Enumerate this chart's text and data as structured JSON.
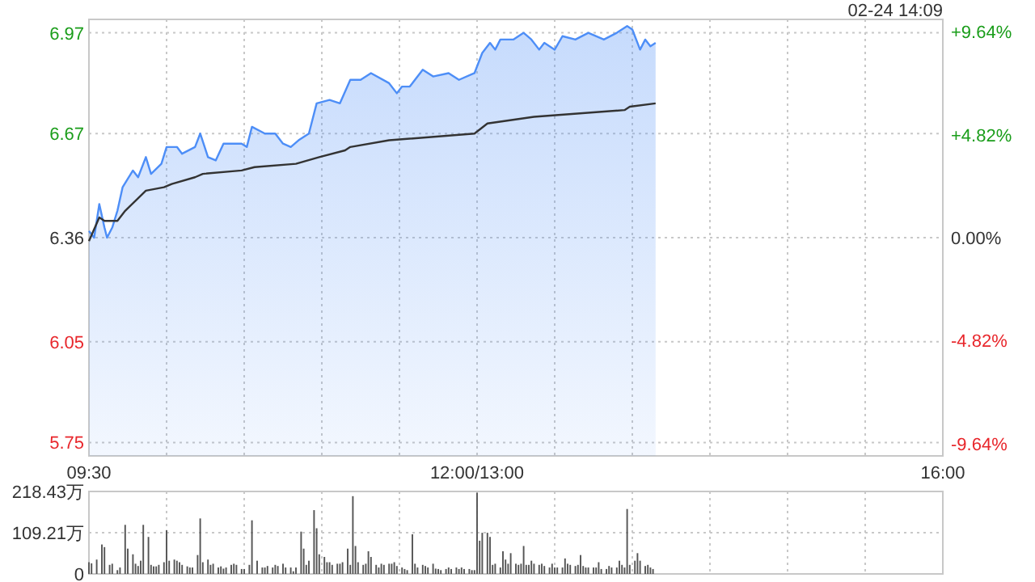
{
  "chart_data": [
    {
      "type": "line",
      "annotations": [
        "02-24 14:09"
      ],
      "categories": [
        "09:30",
        null,
        null,
        null,
        null,
        null,
        null,
        null,
        null,
        null,
        null,
        null,
        null,
        null,
        null,
        null,
        null,
        null,
        null,
        null,
        null,
        null,
        null,
        null,
        null,
        null,
        null,
        null,
        null,
        null,
        null,
        null,
        null,
        null,
        null,
        null,
        null,
        null,
        null,
        null,
        null,
        null,
        null,
        null,
        null,
        null,
        null,
        null,
        null,
        null,
        null,
        null,
        null,
        null,
        null,
        null,
        null,
        null,
        null,
        null,
        null,
        null,
        null,
        null,
        null,
        null,
        null,
        null,
        null,
        null,
        null,
        null,
        null,
        null,
        null,
        null,
        null,
        null,
        null,
        null,
        null,
        null,
        null,
        null,
        null,
        null,
        null,
        null,
        null,
        null,
        null,
        null,
        null,
        null,
        null,
        null,
        null,
        null,
        null,
        null,
        null,
        null,
        null,
        null,
        null,
        null,
        null,
        null,
        null,
        null,
        null,
        null,
        null,
        null,
        null,
        null,
        null,
        null,
        null,
        null,
        null,
        null,
        null,
        null,
        null,
        null,
        null,
        null,
        null,
        null,
        null,
        null,
        null,
        null,
        null,
        null,
        null,
        null,
        null,
        null,
        null,
        null,
        null,
        null,
        null,
        null,
        null,
        null,
        null,
        null,
        "12:00/13:00",
        null,
        null,
        null,
        null,
        null,
        null,
        null,
        null,
        null,
        null,
        null,
        null,
        null,
        null,
        null,
        null,
        null,
        null,
        null,
        null,
        null,
        null,
        null,
        null,
        null,
        null,
        null,
        null,
        null,
        null,
        null,
        null,
        null,
        null,
        null,
        null,
        null,
        null,
        null,
        null,
        null,
        null,
        null,
        null,
        null,
        null,
        null,
        null,
        null,
        null,
        null,
        null,
        null,
        null,
        null,
        null,
        null,
        null,
        null,
        null,
        null,
        null,
        null,
        null,
        null,
        null,
        null,
        null,
        null,
        null,
        null,
        null,
        null,
        null,
        null,
        null,
        null,
        null,
        null,
        null,
        null,
        null,
        null,
        null,
        null,
        null,
        null,
        null,
        null,
        null,
        null,
        null,
        null,
        null,
        null,
        null,
        null,
        null,
        null,
        null,
        null,
        null,
        null,
        null,
        null,
        null,
        null,
        null,
        null,
        null,
        null,
        null,
        null,
        null,
        null,
        null,
        null,
        null,
        null,
        null,
        null,
        null,
        null,
        null,
        null,
        null,
        null,
        null,
        null,
        null,
        null,
        null,
        null,
        null,
        null,
        null,
        null,
        null,
        null,
        null,
        null,
        null,
        null,
        null,
        null,
        null,
        null,
        null,
        null,
        null,
        null,
        null,
        null,
        null,
        null,
        null,
        null,
        null,
        null,
        null,
        null,
        null,
        null,
        null,
        null,
        null,
        null,
        null,
        null,
        null,
        null,
        null,
        null,
        null,
        null,
        null,
        null,
        null,
        null,
        "16:00"
      ],
      "ylim": [
        5.71,
        7.01
      ],
      "yticks": [
        5.75,
        6.05,
        6.36,
        6.67,
        6.97
      ],
      "y2lim": [
        -10.22,
        10.22
      ],
      "y2ticks": [
        {
          "value": -9.64,
          "label": "-9.64%"
        },
        {
          "value": -4.82,
          "label": "-4.82%"
        },
        {
          "value": 0,
          "label": "0.00%"
        },
        {
          "value": 4.82,
          "label": "+4.82%"
        },
        {
          "value": 9.64,
          "label": "+9.64%"
        }
      ],
      "grid": true,
      "series": [
        {
          "type": "area",
          "color": "#4d8ef7",
          "values": [
            6.38,
            null,
            6.36,
            null,
            6.46,
            null,
            6.39,
            6.36,
            null,
            6.39,
            null,
            6.44,
            null,
            6.51,
            null,
            null,
            null,
            6.56,
            null,
            6.54,
            null,
            null,
            6.6,
            null,
            6.55,
            null,
            null,
            null,
            6.58,
            null,
            6.63,
            null,
            null,
            null,
            6.63,
            null,
            6.61,
            null,
            null,
            null,
            null,
            6.63,
            null,
            6.67,
            null,
            null,
            6.6,
            null,
            null,
            6.59,
            null,
            null,
            6.64,
            null,
            null,
            null,
            null,
            null,
            null,
            6.64,
            null,
            6.63,
            null,
            6.69,
            null,
            null,
            null,
            null,
            6.67,
            null,
            null,
            null,
            6.67,
            null,
            null,
            6.64,
            null,
            null,
            6.63,
            null,
            null,
            6.65,
            null,
            null,
            null,
            6.67,
            null,
            null,
            6.76,
            null,
            null,
            null,
            null,
            6.77,
            null,
            null,
            null,
            6.76,
            null,
            null,
            null,
            6.83,
            null,
            null,
            null,
            6.83,
            null,
            null,
            null,
            6.85,
            null,
            null,
            null,
            null,
            null,
            null,
            6.82,
            null,
            null,
            6.79,
            null,
            6.81,
            null,
            null,
            6.81,
            null,
            null,
            null,
            null,
            6.86,
            null,
            null,
            null,
            6.84,
            null,
            null,
            null,
            null,
            null,
            6.85,
            null,
            null,
            null,
            6.83,
            null,
            null,
            null,
            null,
            null,
            6.85,
            null,
            null,
            6.91,
            null,
            null,
            6.94,
            null,
            6.92,
            null,
            6.95,
            null,
            null,
            null,
            null,
            6.95,
            null,
            null,
            null,
            6.97,
            null,
            null,
            6.95,
            null,
            null,
            6.92,
            null,
            6.94,
            null,
            null,
            null,
            6.92,
            null,
            null,
            6.96,
            null,
            null,
            null,
            null,
            6.95,
            null,
            null,
            null,
            null,
            6.97,
            null,
            null,
            null,
            null,
            null,
            6.95,
            null,
            null,
            null,
            null,
            6.97,
            null,
            null,
            null,
            6.99,
            null,
            6.98,
            null,
            null,
            6.92,
            null,
            6.95,
            null,
            6.93,
            null,
            6.94,
            null,
            null,
            null,
            null,
            null,
            null,
            null,
            null,
            null,
            null,
            null,
            null,
            null,
            null,
            null,
            null,
            null,
            null,
            null,
            null,
            null,
            null,
            null,
            null,
            null,
            null,
            null,
            null,
            null,
            null,
            null,
            null,
            null,
            null,
            null,
            null,
            null,
            null,
            null,
            null,
            null,
            null,
            null,
            null,
            null,
            null,
            null,
            null,
            null,
            null,
            null,
            null,
            null,
            null,
            null,
            null,
            null,
            null,
            null,
            null,
            null,
            null,
            null,
            null,
            null,
            null,
            null,
            null,
            null,
            null,
            null,
            null,
            null,
            null,
            null,
            null,
            null,
            null,
            null,
            null,
            null,
            null,
            null,
            null,
            null,
            null,
            null,
            null,
            null,
            null,
            null,
            null,
            null,
            null,
            null,
            null,
            null,
            null,
            null,
            null,
            null,
            null,
            null,
            null,
            null,
            null,
            null,
            null,
            null,
            null,
            null
          ]
        },
        {
          "color": "#333333",
          "values": [
            6.35,
            null,
            null,
            null,
            6.42,
            null,
            6.41,
            null,
            null,
            null,
            null,
            6.41,
            null,
            null,
            6.44,
            null,
            null,
            null,
            6.47,
            null,
            null,
            null,
            6.5,
            null,
            null,
            null,
            null,
            null,
            null,
            6.51,
            null,
            null,
            6.52,
            null,
            null,
            null,
            null,
            null,
            null,
            null,
            null,
            6.54,
            null,
            null,
            6.55,
            null,
            null,
            null,
            null,
            null,
            null,
            null,
            null,
            null,
            null,
            null,
            null,
            null,
            null,
            6.56,
            null,
            null,
            null,
            null,
            6.57,
            null,
            null,
            null,
            null,
            null,
            null,
            null,
            null,
            null,
            null,
            null,
            null,
            null,
            null,
            null,
            6.58,
            null,
            null,
            null,
            null,
            null,
            null,
            null,
            null,
            6.6,
            null,
            null,
            null,
            null,
            null,
            null,
            null,
            null,
            null,
            6.62,
            null,
            6.63,
            null,
            null,
            null,
            null,
            null,
            null,
            null,
            null,
            null,
            null,
            null,
            null,
            null,
            null,
            6.65,
            null,
            null,
            null,
            null,
            null,
            null,
            null,
            null,
            null,
            null,
            null,
            null,
            null,
            null,
            null,
            null,
            null,
            null,
            null,
            null,
            null,
            null,
            null,
            null,
            null,
            null,
            null,
            null,
            null,
            null,
            null,
            null,
            6.67,
            null,
            null,
            null,
            null,
            6.7,
            null,
            null,
            null,
            null,
            null,
            null,
            null,
            null,
            null,
            null,
            null,
            null,
            null,
            null,
            null,
            null,
            null,
            6.72,
            null,
            null,
            null,
            null,
            null,
            null,
            null,
            null,
            null,
            null,
            null,
            null,
            null,
            null,
            null,
            null,
            null,
            null,
            null,
            null,
            null,
            null,
            null,
            null,
            null,
            null,
            null,
            null,
            null,
            null,
            null,
            null,
            null,
            null,
            6.74,
            null,
            6.75,
            null,
            null,
            null,
            null,
            null,
            null,
            null,
            null,
            null,
            6.76,
            null,
            null,
            null,
            null,
            null,
            null,
            null,
            null,
            null,
            null,
            null,
            null,
            null,
            null,
            null,
            null,
            null,
            null,
            null,
            null,
            null,
            null,
            null,
            null,
            null,
            null,
            null,
            null,
            null,
            null,
            null,
            null,
            null,
            null,
            null,
            null,
            null,
            null,
            null,
            null,
            null,
            null,
            null,
            null,
            null,
            null,
            null,
            null,
            null,
            null,
            null,
            null,
            null,
            null,
            null,
            null,
            null,
            null,
            null,
            null,
            null,
            null,
            null,
            null,
            null,
            null,
            null,
            null,
            null,
            null,
            null,
            null,
            null,
            null,
            null,
            null,
            null,
            null,
            null,
            null,
            null,
            null,
            null,
            null,
            null,
            null,
            null,
            null,
            null,
            null,
            null,
            null,
            null,
            null,
            null,
            null,
            null,
            null,
            null,
            null,
            null,
            null,
            null,
            null,
            null,
            null,
            null,
            null,
            null,
            null,
            null
          ]
        }
      ]
    },
    {
      "type": "bar",
      "tick_labels": "y",
      "categories": [
        null,
        null,
        null,
        null,
        null,
        null,
        null,
        null,
        null,
        null,
        null,
        null,
        null,
        null,
        null,
        null,
        null,
        null,
        null,
        null,
        null,
        null,
        null,
        null,
        null,
        null,
        null,
        null,
        null,
        null,
        null,
        null,
        null,
        null,
        null,
        null,
        null,
        null,
        null,
        null,
        null,
        null,
        null,
        null,
        null,
        null,
        null,
        null,
        null,
        null,
        null,
        null,
        null,
        null,
        null,
        null,
        null,
        null,
        null,
        null,
        null,
        null,
        null,
        null,
        null,
        null,
        null,
        null,
        null,
        null,
        null,
        null,
        null,
        null,
        null,
        null,
        null,
        null,
        null,
        null,
        null,
        null,
        null,
        null,
        null,
        null,
        null,
        null,
        null,
        null,
        null,
        null,
        null,
        null,
        null,
        null,
        null,
        null,
        null,
        null,
        null,
        null,
        null,
        null,
        null,
        null,
        null,
        null,
        null,
        null,
        null,
        null,
        null,
        null,
        null,
        null,
        null,
        null,
        null,
        null,
        null,
        null,
        null,
        null,
        null,
        null,
        null,
        null,
        null,
        null,
        null,
        null,
        null,
        null,
        null,
        null,
        null,
        null,
        null,
        null,
        null,
        null,
        null,
        null,
        null,
        null,
        null,
        null,
        null,
        null,
        null,
        null,
        null,
        null,
        null,
        null,
        null,
        null,
        null,
        null,
        null,
        null,
        null,
        null,
        null,
        null,
        null,
        null,
        null,
        null,
        null,
        null,
        null,
        null,
        null,
        null,
        null,
        null,
        null,
        null,
        null,
        null,
        null,
        null,
        null,
        null,
        null,
        null,
        null,
        null,
        null,
        null,
        null,
        null,
        null,
        null,
        null,
        null,
        null,
        null,
        null,
        null,
        null,
        null,
        null,
        null,
        null,
        null,
        null,
        null,
        null,
        null,
        null,
        null,
        null,
        null,
        null,
        null,
        null,
        null,
        null,
        null,
        null,
        null,
        null,
        null,
        null,
        null,
        null,
        null,
        null,
        null,
        null,
        null,
        null,
        null,
        null,
        null,
        null,
        null,
        null,
        null,
        null,
        null,
        null,
        null,
        null,
        null,
        null,
        null,
        null,
        null,
        null,
        null,
        null,
        null,
        null,
        null,
        null,
        null,
        null,
        null,
        null,
        null,
        null,
        null,
        null,
        null,
        null,
        null,
        null,
        null,
        null,
        null,
        null,
        null,
        null,
        null,
        null,
        null,
        null,
        null,
        null,
        null,
        null,
        null,
        null,
        null,
        null,
        null,
        null,
        null,
        null,
        null,
        null,
        null,
        null,
        null,
        null,
        null,
        null,
        null,
        null,
        null,
        null,
        null,
        null,
        null,
        null,
        null,
        null,
        null,
        null,
        null,
        null,
        null,
        null,
        null,
        null,
        null,
        null,
        null,
        null,
        null,
        null,
        null,
        null,
        null,
        null,
        null,
        null
      ],
      "ylim": [
        0,
        218.43
      ],
      "yticks": [
        0,
        {
          "value": 109.21,
          "label": "109.21万"
        },
        {
          "value": 218.43,
          "label": "218.43万"
        }
      ],
      "grid": true,
      "series": [
        {
          "color": "#555555",
          "values": [
            31,
            28,
            null,
            38,
            null,
            78,
            71,
            null,
            24,
            27,
            null,
            10,
            17,
            null,
            130,
            67,
            null,
            52,
            27,
            21,
            35,
            130,
            null,
            98,
            24,
            20,
            20,
            24,
            null,
            31,
            116,
            35,
            null,
            38,
            35,
            31,
            24,
            null,
            20,
            17,
            17,
            null,
            50,
            147,
            31,
            null,
            38,
            24,
            27,
            null,
            17,
            20,
            14,
            17,
            null,
            24,
            27,
            24,
            null,
            13,
            13,
            null,
            24,
            142,
            null,
            35,
            null,
            17,
            17,
            21,
            null,
            17,
            24,
            21,
            null,
            27,
            17,
            null,
            17,
            7,
            17,
            null,
            112,
            67,
            24,
            35,
            null,
            169,
            121,
            52,
            null,
            45,
            31,
            31,
            24,
            null,
            27,
            27,
            31,
            null,
            67,
            24,
            206,
            74,
            31,
            null,
            24,
            27,
            60,
            45,
            null,
            24,
            17,
            27,
            24,
            null,
            27,
            27,
            31,
            21,
            null,
            17,
            13,
            10,
            null,
            105,
            27,
            17,
            null,
            24,
            21,
            17,
            null,
            27,
            14,
            13,
            10,
            null,
            13,
            17,
            13,
            null,
            17,
            13,
            17,
            13,
            null,
            13,
            10,
            10,
            215,
            88,
            109,
            null,
            109,
            98,
            24,
            27,
            null,
            17,
            60,
            38,
            27,
            55,
            null,
            27,
            24,
            27,
            74,
            24,
            24,
            35,
            27,
            null,
            24,
            27,
            21,
            null,
            17,
            27,
            17,
            17,
            null,
            17,
            41,
            27,
            24,
            null,
            21,
            24,
            50,
            21,
            17,
            17,
            null,
            17,
            17,
            31,
            13,
            null,
            13,
            21,
            17,
            null,
            17,
            35,
            24,
            17,
            172,
            24,
            null,
            35,
            55,
            35,
            null,
            21,
            24,
            17,
            13,
            null,
            null,
            null,
            null,
            null,
            null,
            null,
            null,
            null,
            null,
            null,
            null,
            null,
            null,
            null,
            null,
            null,
            null,
            null,
            null,
            null,
            null,
            null,
            null,
            null,
            null,
            null,
            null,
            null,
            null,
            null,
            null,
            null,
            null,
            null,
            null,
            null,
            null,
            null,
            null,
            null,
            null,
            null,
            null,
            null,
            null,
            null,
            null,
            null,
            null,
            null,
            null,
            null,
            null,
            null,
            null,
            null,
            null,
            null,
            null,
            null,
            null,
            null,
            null,
            null,
            null,
            null,
            null,
            null,
            null,
            null,
            null,
            null,
            null,
            null,
            null,
            null,
            null,
            null,
            null,
            null,
            null,
            null,
            null,
            null,
            null,
            null,
            null,
            null,
            null,
            null,
            null,
            null,
            null,
            null,
            null,
            null,
            null,
            null,
            null,
            null,
            null,
            null,
            null,
            null,
            null,
            null,
            null,
            null,
            null,
            null,
            null
          ]
        }
      ]
    }
  ]
}
